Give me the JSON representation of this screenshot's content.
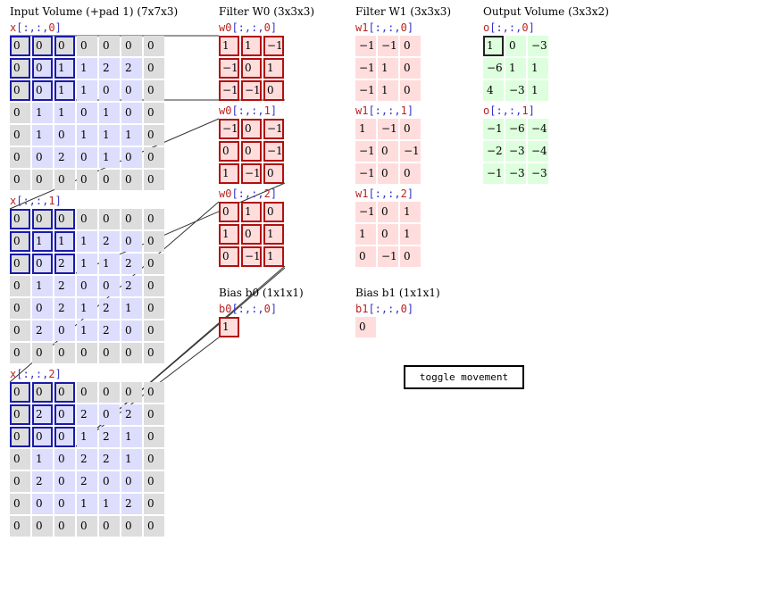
{
  "input": {
    "title": "Input Volume (+pad 1) (7x7x3)",
    "slices": [
      {
        "name": "x",
        "idx": "0",
        "rows": [
          [
            0,
            0,
            0,
            0,
            0,
            0,
            0
          ],
          [
            0,
            0,
            1,
            1,
            2,
            2,
            0
          ],
          [
            0,
            0,
            1,
            1,
            0,
            0,
            0
          ],
          [
            0,
            1,
            1,
            0,
            1,
            0,
            0
          ],
          [
            0,
            1,
            0,
            1,
            1,
            1,
            0
          ],
          [
            0,
            0,
            2,
            0,
            1,
            0,
            0
          ],
          [
            0,
            0,
            0,
            0,
            0,
            0,
            0
          ]
        ]
      },
      {
        "name": "x",
        "idx": "1",
        "rows": [
          [
            0,
            0,
            0,
            0,
            0,
            0,
            0
          ],
          [
            0,
            1,
            1,
            1,
            2,
            0,
            0
          ],
          [
            0,
            0,
            2,
            1,
            1,
            2,
            0
          ],
          [
            0,
            1,
            2,
            0,
            0,
            2,
            0
          ],
          [
            0,
            0,
            2,
            1,
            2,
            1,
            0
          ],
          [
            0,
            2,
            0,
            1,
            2,
            0,
            0
          ],
          [
            0,
            0,
            0,
            0,
            0,
            0,
            0
          ]
        ]
      },
      {
        "name": "x",
        "idx": "2",
        "rows": [
          [
            0,
            0,
            0,
            0,
            0,
            0,
            0
          ],
          [
            0,
            2,
            0,
            2,
            0,
            2,
            0
          ],
          [
            0,
            0,
            0,
            1,
            2,
            1,
            0
          ],
          [
            0,
            1,
            0,
            2,
            2,
            1,
            0
          ],
          [
            0,
            2,
            0,
            2,
            0,
            0,
            0
          ],
          [
            0,
            0,
            0,
            1,
            1,
            2,
            0
          ],
          [
            0,
            0,
            0,
            0,
            0,
            0,
            0
          ]
        ]
      }
    ]
  },
  "filter0": {
    "title": "Filter W0 (3x3x3)",
    "slices": [
      {
        "name": "w0",
        "idx": "0",
        "rows": [
          [
            1,
            1,
            -1
          ],
          [
            -1,
            0,
            1
          ],
          [
            -1,
            -1,
            0
          ]
        ]
      },
      {
        "name": "w0",
        "idx": "1",
        "rows": [
          [
            -1,
            0,
            -1
          ],
          [
            0,
            0,
            -1
          ],
          [
            1,
            -1,
            0
          ]
        ]
      },
      {
        "name": "w0",
        "idx": "2",
        "rows": [
          [
            0,
            1,
            0
          ],
          [
            1,
            0,
            1
          ],
          [
            0,
            -1,
            1
          ]
        ]
      }
    ],
    "bias_title": "Bias b0 (1x1x1)",
    "bias": {
      "name": "b0",
      "idx": "0",
      "rows": [
        [
          1
        ]
      ]
    }
  },
  "filter1": {
    "title": "Filter W1 (3x3x3)",
    "slices": [
      {
        "name": "w1",
        "idx": "0",
        "rows": [
          [
            -1,
            -1,
            0
          ],
          [
            -1,
            1,
            0
          ],
          [
            -1,
            1,
            0
          ]
        ]
      },
      {
        "name": "w1",
        "idx": "1",
        "rows": [
          [
            1,
            -1,
            0
          ],
          [
            -1,
            0,
            -1
          ],
          [
            -1,
            0,
            0
          ]
        ]
      },
      {
        "name": "w1",
        "idx": "2",
        "rows": [
          [
            -1,
            0,
            1
          ],
          [
            1,
            0,
            1
          ],
          [
            0,
            -1,
            0
          ]
        ]
      }
    ],
    "bias_title": "Bias b1 (1x1x1)",
    "bias": {
      "name": "b1",
      "idx": "0",
      "rows": [
        [
          0
        ]
      ]
    }
  },
  "output": {
    "title": "Output Volume (3x3x2)",
    "slices": [
      {
        "name": "o",
        "idx": "0",
        "rows": [
          [
            1,
            0,
            -3
          ],
          [
            -6,
            1,
            1
          ],
          [
            4,
            -3,
            1
          ]
        ]
      },
      {
        "name": "o",
        "idx": "1",
        "rows": [
          [
            -1,
            -6,
            -4
          ],
          [
            -2,
            -3,
            -4
          ],
          [
            -1,
            -3,
            -3
          ]
        ]
      }
    ]
  },
  "toggle_label": "toggle movement",
  "colors": {
    "pad": "#dddddd",
    "input": "#ddddfd",
    "weight": "#ffdddd",
    "output": "#ddffdd",
    "highlight_input": "#1a1aaa",
    "highlight_weight": "#b01010"
  }
}
